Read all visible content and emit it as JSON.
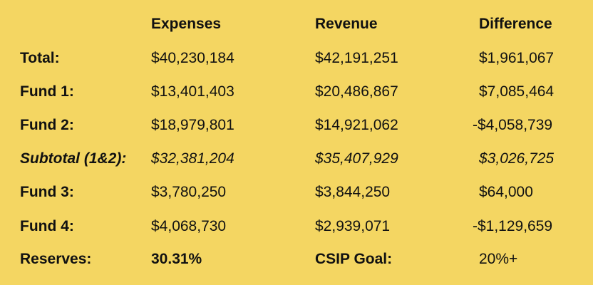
{
  "headers": {
    "expenses": "Expenses",
    "revenue": "Revenue",
    "difference": "Difference"
  },
  "rows": [
    {
      "label": "Total:",
      "expenses": "$40,230,184",
      "revenue": "$42,191,251",
      "difference": "$1,961,067"
    },
    {
      "label": "Fund 1:",
      "expenses": "$13,401,403",
      "revenue": "$20,486,867",
      "difference": "$7,085,464"
    },
    {
      "label": "Fund 2:",
      "expenses": "$18,979,801",
      "revenue": "$14,921,062",
      "difference": "-$4,058,739"
    },
    {
      "label": "Subtotal (1&2):",
      "expenses": "$32,381,204",
      "revenue": "$35,407,929",
      "difference": "$3,026,725"
    },
    {
      "label": "Fund 3:",
      "expenses": "$3,780,250",
      "revenue": "$3,844,250",
      "difference": "$64,000"
    },
    {
      "label": "Fund 4:",
      "expenses": "$4,068,730",
      "revenue": "$2,939,071",
      "difference": "-$1,129,659"
    }
  ],
  "footer": {
    "reserves_label": "Reserves:",
    "reserves_value": "30.31%",
    "goal_label": "CSIP Goal:",
    "goal_value": "20%+"
  },
  "colors": {
    "background": "#F4D662",
    "text": "#111111"
  }
}
